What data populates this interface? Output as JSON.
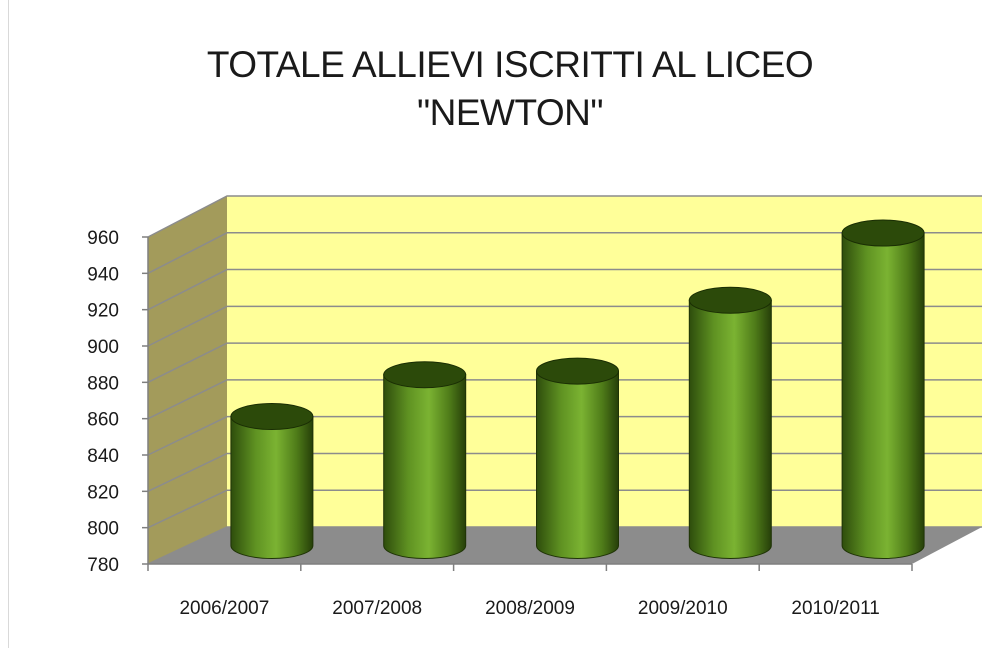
{
  "chart_data": {
    "type": "bar",
    "style": "3d-cylinder",
    "title_lines": [
      "TOTALE ALLIEVI ISCRITTI AL LICEO",
      "\"NEWTON\""
    ],
    "xlabel": "",
    "ylabel": "",
    "categories": [
      "2006/2007",
      "2007/2008",
      "2008/2009",
      "2009/2010",
      "2010/2011"
    ],
    "values": [
      851,
      874,
      876,
      915,
      952
    ],
    "ylim": [
      780,
      960
    ],
    "yticks": [
      780,
      800,
      820,
      840,
      860,
      880,
      900,
      920,
      940,
      960
    ],
    "grid": true,
    "legend": "none",
    "colors": {
      "bar": "#5a8a1e",
      "bar_dark": "#243d08",
      "bar_light": "#8cc43a",
      "wall": "#ffff99",
      "side_wall": "#a39b5b",
      "floor": "#8c8c8c",
      "gridline": "#8c8c8c"
    }
  }
}
